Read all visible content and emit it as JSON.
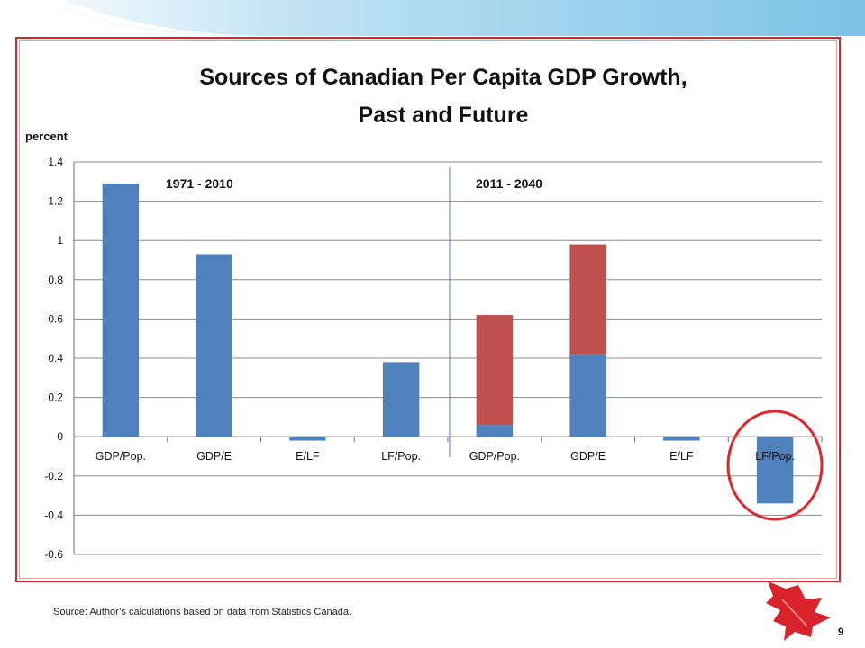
{
  "slide": {
    "source_note": "Source:  Author’s calculations based on data from Statistics Canada.",
    "page_number": "9",
    "decorations": [
      "maple-leaf-icon",
      "circle-highlight"
    ]
  },
  "colors": {
    "blue": "#4f81bd",
    "red": "#c0504d",
    "frame": "#d9262a",
    "grid": "#8c8c8c",
    "sky": "#8ecbe8"
  },
  "chart_data": {
    "type": "bar",
    "stacked": true,
    "title": "Sources of Canadian Per Capita GDP Growth,",
    "subtitle": "Past and Future",
    "ylabel": "percent",
    "xlabel": "",
    "ylim": [
      -0.6,
      1.4
    ],
    "yticks": [
      "-0.6",
      "-0.4",
      "-0.2",
      "0",
      "0.2",
      "0.4",
      "0.6",
      "0.8",
      "1",
      "1.2",
      "1.4"
    ],
    "grid": true,
    "categories": [
      "GDP/Pop.",
      "GDP/E",
      "E/LF",
      "LF/Pop.",
      "GDP/Pop.",
      "GDP/E",
      "E/LF",
      "LF/Pop."
    ],
    "period_labels": [
      "1971 - 2010",
      "2011 - 2040"
    ],
    "series": [
      {
        "color": "#4f81bd",
        "values": [
          1.29,
          0.93,
          -0.02,
          0.38,
          0.06,
          0.42,
          -0.02,
          -0.34
        ]
      },
      {
        "color": "#c0504d",
        "values": [
          0,
          0,
          0,
          0,
          0.56,
          0.56,
          0,
          0
        ]
      }
    ],
    "highlight_category_index": 7
  }
}
